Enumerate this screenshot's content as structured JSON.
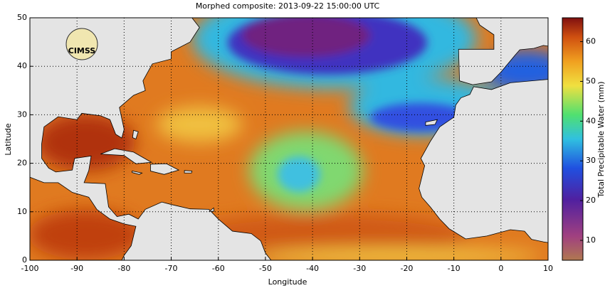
{
  "map": {
    "title": "Morphed composite: 2013-09-22 15:00:00 UTC",
    "xlabel": "Longitude",
    "ylabel": "Latitude",
    "logo": "CIMSS",
    "xlim": [
      -100,
      10
    ],
    "ylim": [
      0,
      50
    ],
    "xticks": [
      -100,
      -90,
      -80,
      -70,
      -60,
      -50,
      -40,
      -30,
      -20,
      -10,
      0,
      10
    ],
    "yticks": [
      0,
      10,
      20,
      30,
      40,
      50
    ],
    "grid": true,
    "colorbar": {
      "label": "Total Precipitable Water (mm)",
      "lim": [
        5,
        66
      ],
      "ticks": [
        10,
        20,
        30,
        40,
        50,
        60
      ]
    }
  }
}
